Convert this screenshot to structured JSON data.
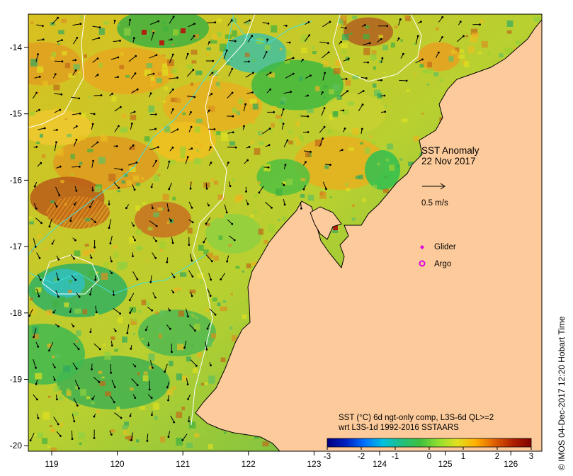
{
  "map": {
    "title_line1": "SST Anomaly",
    "title_line2": "22 Nov 2017",
    "vector_scale_label": "0.5 m/s",
    "legend": {
      "glider_label": "Glider",
      "argo_label": "Argo",
      "glider_color": "#e000e0",
      "argo_color": "#e000e0"
    },
    "colorbar": {
      "caption_line1": "SST (°C) 6d ngt-only comp, L3S-6d QL>=2",
      "caption_line2": "wrt L3S-1d 1992-2016 SSTAARS",
      "ticks": [
        "-3",
        "-2",
        "-1",
        "0",
        "1",
        "2",
        "3"
      ],
      "colors": [
        "#000080",
        "#0020c0",
        "#0070ff",
        "#00c0e0",
        "#20c080",
        "#40c040",
        "#90e030",
        "#e0e020",
        "#ffb000",
        "#e06000",
        "#b02000",
        "#800000"
      ]
    },
    "x_ticks": [
      "119",
      "120",
      "121",
      "122",
      "123",
      "124",
      "125",
      "126"
    ],
    "y_ticks": [
      "-14",
      "-15",
      "-16",
      "-17",
      "-18",
      "-19",
      "-20"
    ],
    "credit": "© IMOS 04-Dec-2017 12:20 Hobart Time",
    "colors": {
      "land": "#fdcb9b",
      "coast": "#000000",
      "isobath_white": "#ffffff",
      "isobath_cyan": "#40e0e0"
    }
  }
}
